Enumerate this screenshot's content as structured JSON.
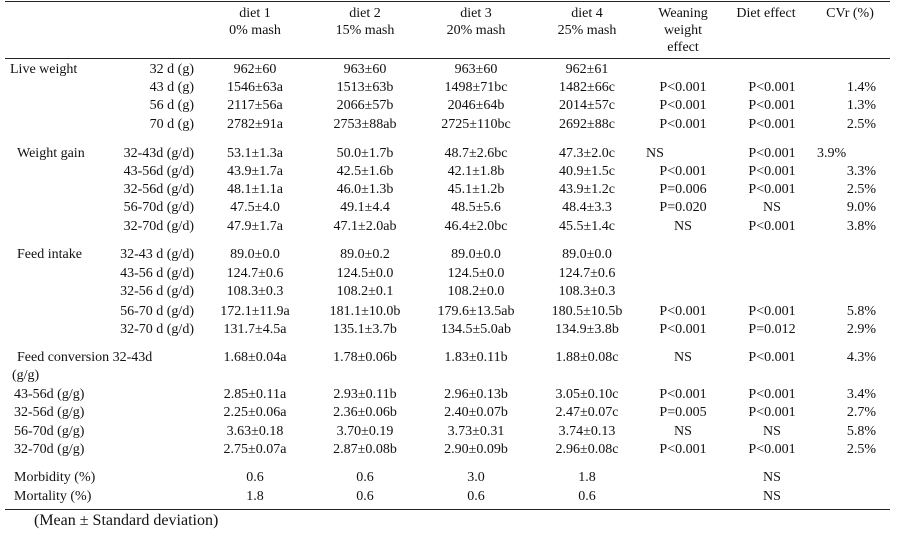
{
  "header": {
    "cols": [
      {
        "line1": "diet 1",
        "line2": "0% mash"
      },
      {
        "line1": "diet 2",
        "line2": "15% mash"
      },
      {
        "line1": "diet 3",
        "line2": "20% mash"
      },
      {
        "line1": "diet 4",
        "line2": "25% mash"
      }
    ],
    "weaning_l1": "Weaning",
    "weaning_l2": "weight",
    "weaning_l3": "effect",
    "diet_effect": "Diet effect",
    "cvr": "CVr (%)"
  },
  "rows": [
    {
      "group": "Live weight",
      "sub": "32 d (g)",
      "v": [
        "962±60",
        "963±60",
        "963±60",
        "962±61"
      ],
      "we": "",
      "de": "",
      "cv": ""
    },
    {
      "group": "",
      "sub": "43 d (g)",
      "v": [
        "1546±63a",
        "1513±63b",
        "1498±71bc",
        "1482±66c"
      ],
      "we": "P<0.001",
      "de": "P<0.001",
      "cv": "1.4%"
    },
    {
      "group": "",
      "sub": "56 d (g)",
      "v": [
        "2117±56a",
        "2066±57b",
        "2046±64b",
        "2014±57c"
      ],
      "we": "P<0.001",
      "de": "P<0.001",
      "cv": "1.3%"
    },
    {
      "group": "",
      "sub": "70 d (g)",
      "v": [
        "2782±91a",
        "2753±88ab",
        "2725±110bc",
        "2692±88c"
      ],
      "we": "P<0.001",
      "de": "P<0.001",
      "cv": "2.5%"
    },
    {
      "group": "Weight gain",
      "sub": "32-43d (g/d)",
      "v": [
        "53.1±1.3a",
        "50.0±1.7b",
        "48.7±2.6bc",
        "47.3±2.0c"
      ],
      "we": "NS",
      "de": "P<0.001",
      "cv": "3.9%"
    },
    {
      "group": "",
      "sub": "43-56d (g/d)",
      "v": [
        "43.9±1.7a",
        "42.5±1.6b",
        "42.1±1.8b",
        "40.9±1.5c"
      ],
      "we": "P<0.001",
      "de": "P<0.001",
      "cv": "3.3%"
    },
    {
      "group": "",
      "sub": "32-56d (g/d)",
      "v": [
        "48.1±1.1a",
        "46.0±1.3b",
        "45.1±1.2b",
        "43.9±1.2c"
      ],
      "we": "P=0.006",
      "de": "P<0.001",
      "cv": "2.5%"
    },
    {
      "group": "",
      "sub": "56-70d (g/d)",
      "v": [
        "47.5±4.0",
        "49.1±4.4",
        "48.5±5.6",
        "48.4±3.3"
      ],
      "we": "P=0.020",
      "de": "NS",
      "cv": "9.0%"
    },
    {
      "group": "",
      "sub": "32-70d (g/d)",
      "v": [
        "47.9±1.7a",
        "47.1±2.0ab",
        "46.4±2.0bc",
        "45.5±1.4c"
      ],
      "we": "NS",
      "de": "P<0.001",
      "cv": "3.8%"
    },
    {
      "group": "Feed intake",
      "sub": "32-43 d (g/d)",
      "v": [
        "89.0±0.0",
        "89.0±0.2",
        "89.0±0.0",
        "89.0±0.0"
      ],
      "we": "",
      "de": "",
      "cv": ""
    },
    {
      "group": "",
      "sub": "43-56 d (g/d)",
      "v": [
        "124.7±0.6",
        "124.5±0.0",
        "124.5±0.0",
        "124.7±0.6"
      ],
      "we": "",
      "de": "",
      "cv": ""
    },
    {
      "group": "",
      "sub": "32-56 d (g/d)",
      "v": [
        "108.3±0.3",
        "108.2±0.1",
        "108.2±0.0",
        "108.3±0.3"
      ],
      "we": "",
      "de": "",
      "cv": ""
    },
    {
      "group": "",
      "sub": "56-70 d (g/d)",
      "v": [
        "172.1±11.9a",
        "181.1±10.0b",
        "179.6±13.5ab",
        "180.5±10.5b"
      ],
      "we": "P<0.001",
      "de": "P<0.001",
      "cv": "5.8%"
    },
    {
      "group": "",
      "sub": "32-70 d (g/d)",
      "v": [
        "131.7±4.5a",
        "135.1±3.7b",
        "134.5±5.0ab",
        "134.9±3.8b"
      ],
      "we": "P<0.001",
      "de": "P=0.012",
      "cv": "2.9%"
    },
    {
      "group": "Feed conversion 32-43d",
      "sub": "(g/g)",
      "v": [
        "1.68±0.04a",
        "1.78±0.06b",
        "1.83±0.11b",
        "1.88±0.08c"
      ],
      "we": "NS",
      "de": "P<0.001",
      "cv": "4.3%"
    },
    {
      "group": "",
      "sub": "43-56d (g/g)",
      "v": [
        "2.85±0.11a",
        "2.93±0.11b",
        "2.96±0.13b",
        "3.05±0.10c"
      ],
      "we": "P<0.001",
      "de": "P<0.001",
      "cv": "3.4%"
    },
    {
      "group": "",
      "sub": "32-56d (g/g)",
      "v": [
        "2.25±0.06a",
        "2.36±0.06b",
        "2.40±0.07b",
        "2.47±0.07c"
      ],
      "we": "P=0.005",
      "de": "P<0.001",
      "cv": "2.7%"
    },
    {
      "group": "",
      "sub": "56-70d (g/g)",
      "v": [
        "3.63±0.18",
        "3.70±0.19",
        "3.73±0.31",
        "3.74±0.13"
      ],
      "we": "NS",
      "de": "NS",
      "cv": "5.8%"
    },
    {
      "group": "",
      "sub": "32-70d (g/g)",
      "v": [
        "2.75±0.07a",
        "2.87±0.08b",
        "2.90±0.09b",
        "2.96±0.08c"
      ],
      "we": "P<0.001",
      "de": "P<0.001",
      "cv": "2.5%"
    },
    {
      "group": "Morbidity (%)",
      "sub": "",
      "v": [
        "0.6",
        "0.6",
        "3.0",
        "1.8"
      ],
      "we": "",
      "de": "NS",
      "cv": ""
    },
    {
      "group": "Mortality (%)",
      "sub": "",
      "v": [
        "1.8",
        "0.6",
        "0.6",
        "0.6"
      ],
      "we": "",
      "de": "NS",
      "cv": ""
    }
  ],
  "footnote": "(Mean ± Standard deviation)"
}
